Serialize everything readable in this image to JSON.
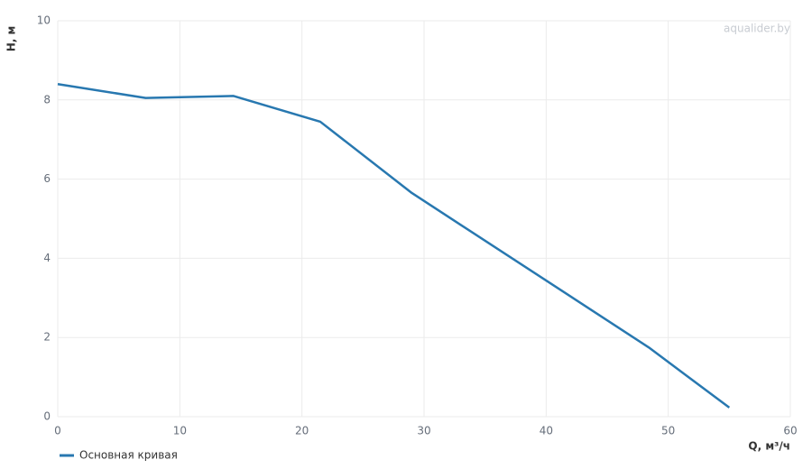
{
  "chart_data": {
    "type": "line",
    "x_label": "Q, м³/ч",
    "y_label": "H, м",
    "watermark": "aqualider.by",
    "x": [
      0,
      7.2,
      14.4,
      21.5,
      29,
      48.4,
      55
    ],
    "series": [
      {
        "name": "Основная кривая",
        "color": "#2878b0",
        "values": [
          8.4,
          8.05,
          8.1,
          7.45,
          5.65,
          1.75,
          0.23
        ]
      }
    ],
    "xlim": [
      0,
      60
    ],
    "xticks": [
      0,
      10,
      20,
      30,
      40,
      50,
      60
    ],
    "ylim": [
      0,
      10
    ],
    "yticks": [
      0,
      2,
      4,
      6,
      8,
      10
    ],
    "grid": true,
    "legend": "bottom-left"
  }
}
